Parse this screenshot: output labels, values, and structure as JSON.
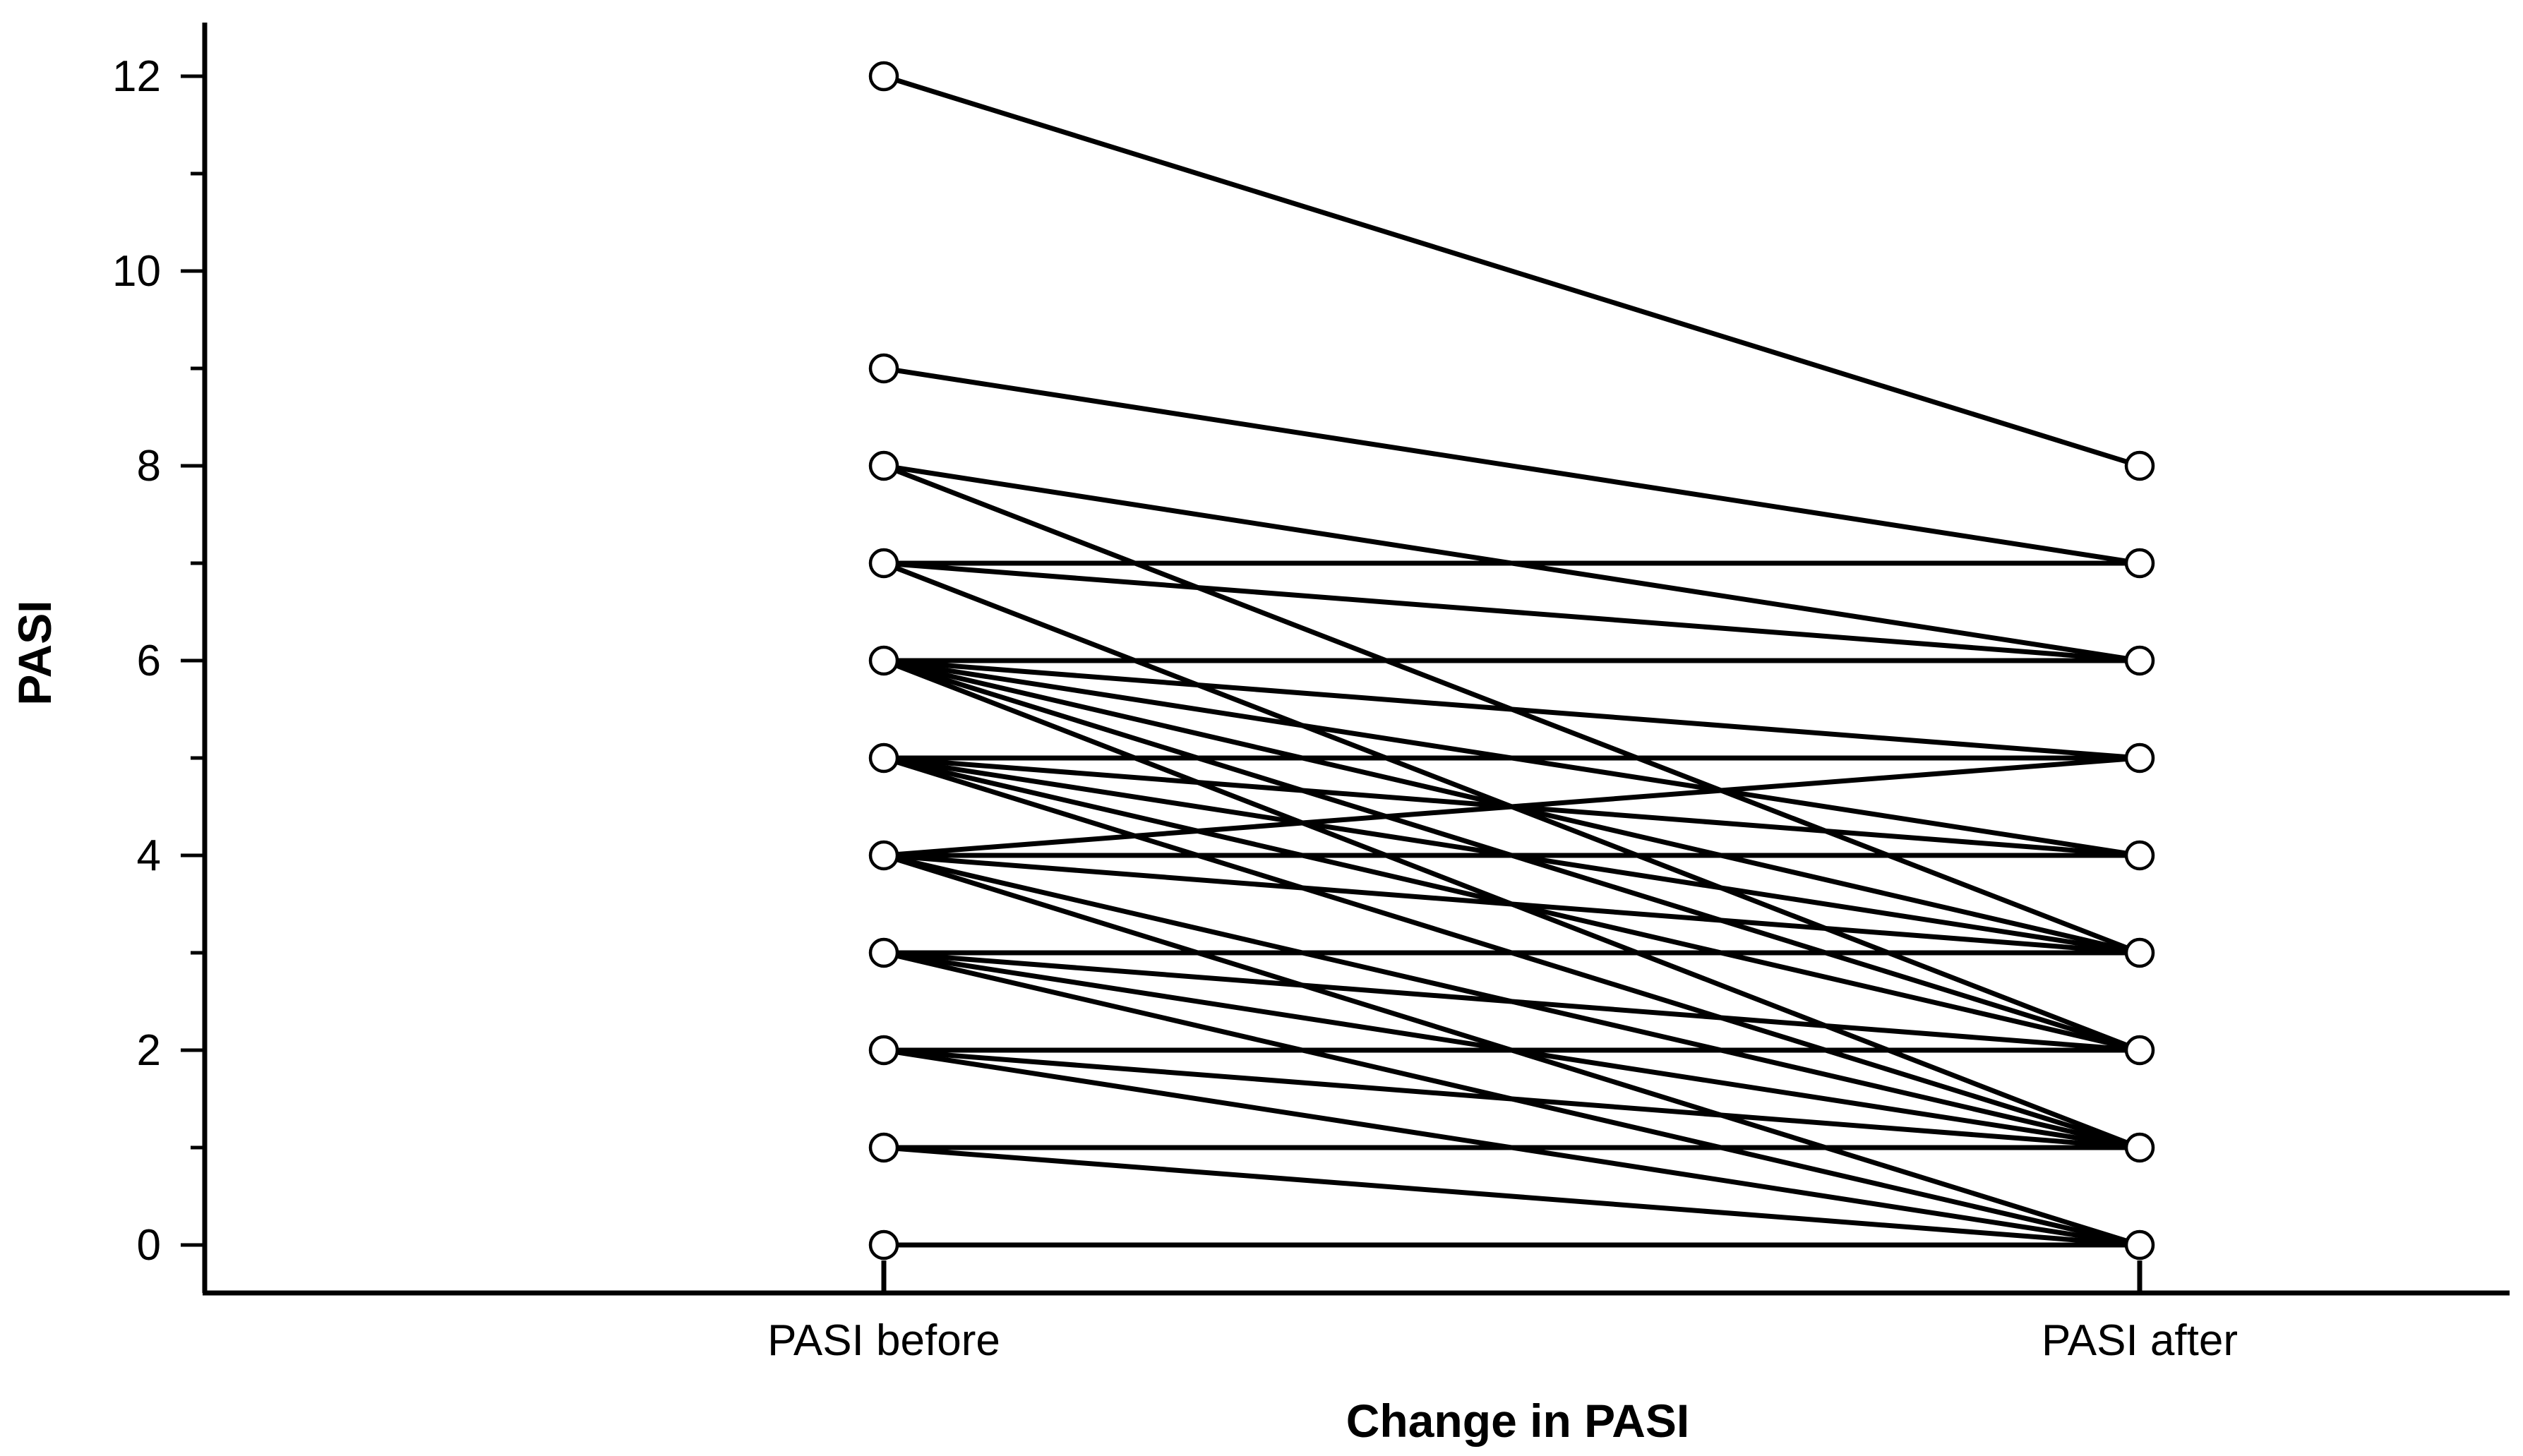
{
  "chart_data": {
    "type": "line",
    "title": "",
    "xlabel": "Change in PASI",
    "ylabel": "PASI",
    "categories": [
      "PASI  before",
      "PASI  after"
    ],
    "ylim": [
      0,
      12.5
    ],
    "yticks": [
      0,
      2,
      4,
      6,
      8,
      10,
      12
    ],
    "grid": false,
    "marker": "open-circle",
    "line_color": "#000000",
    "pairs": [
      [
        12,
        8
      ],
      [
        9,
        7
      ],
      [
        8,
        6
      ],
      [
        8,
        3
      ],
      [
        7,
        7
      ],
      [
        7,
        6
      ],
      [
        7,
        2
      ],
      [
        6,
        6
      ],
      [
        6,
        5
      ],
      [
        6,
        4
      ],
      [
        6,
        3
      ],
      [
        6,
        2
      ],
      [
        6,
        1
      ],
      [
        5,
        5
      ],
      [
        5,
        4
      ],
      [
        5,
        3
      ],
      [
        5,
        2
      ],
      [
        5,
        1
      ],
      [
        4,
        5
      ],
      [
        4,
        4
      ],
      [
        4,
        3
      ],
      [
        4,
        1
      ],
      [
        4,
        0
      ],
      [
        3,
        3
      ],
      [
        3,
        2
      ],
      [
        3,
        1
      ],
      [
        3,
        0
      ],
      [
        2,
        2
      ],
      [
        2,
        1
      ],
      [
        2,
        0
      ],
      [
        1,
        1
      ],
      [
        1,
        0
      ],
      [
        0,
        0
      ]
    ]
  }
}
